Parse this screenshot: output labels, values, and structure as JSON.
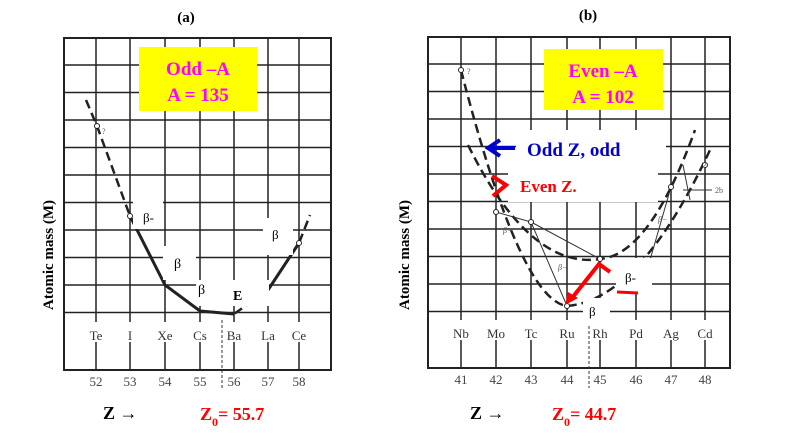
{
  "panel_a": {
    "caption": "(a)",
    "box_line1": "Odd –A",
    "box_line2": "A = 135",
    "y_label": "Atomic mass (M)",
    "elements": [
      "Te",
      "I",
      "Xe",
      "Cs",
      "Ba",
      "La",
      "Ce"
    ],
    "z_values": [
      "52",
      "53",
      "54",
      "55",
      "56",
      "57",
      "58"
    ],
    "z_arrow": "Z →",
    "z0_prefix": "Z",
    "z0_sub": "0",
    "z0_value": "= 55.7",
    "decay_labels": [
      "β-",
      "β",
      "β",
      "E",
      "β"
    ],
    "point_note": "?"
  },
  "panel_b": {
    "caption": "(b)",
    "box_line1": "Even –A",
    "box_line2": "A = 102",
    "y_label": "Atomic mass (M)",
    "elements": [
      "Nb",
      "Mo",
      "Tc",
      "Ru",
      "Rh",
      "Pd",
      "Ag",
      "Cd"
    ],
    "z_values": [
      "41",
      "42",
      "43",
      "44",
      "45",
      "46",
      "47",
      "48"
    ],
    "legend_odd": "Odd Z, odd",
    "legend_even": "Even Z.",
    "z_arrow": "Z →",
    "z0_prefix": "Z",
    "z0_sub": "0",
    "z0_value": "= 44.7",
    "decay_labels": [
      "β-",
      "β"
    ],
    "inline_labels": [
      "β−",
      "β−",
      "β−",
      "2b"
    ],
    "point_note": "?"
  },
  "colors": {
    "box_fill": "#ffff00",
    "box_text": "#ff00ff",
    "accent_red": "#ff0000",
    "accent_blue": "#0000cc",
    "grid": "#1a1a1a"
  }
}
